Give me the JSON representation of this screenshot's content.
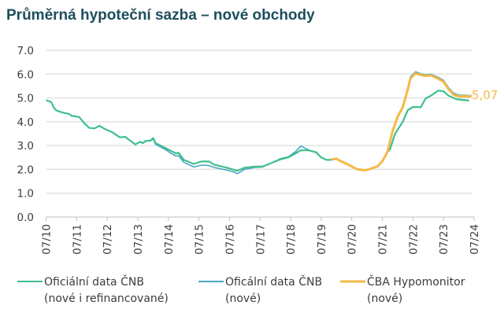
{
  "chart_data": {
    "type": "line",
    "title": "Průměrná hypoteční sazba – nové obchody",
    "xlabel": "",
    "ylabel": "",
    "ylim": [
      0,
      7
    ],
    "yticks": [
      "0.0",
      "1.0",
      "2.0",
      "3.0",
      "4.0",
      "5.0",
      "6.0",
      "7.0"
    ],
    "xticks": [
      "07/10",
      "07/11",
      "07/12",
      "07/13",
      "07/14",
      "07/15",
      "07/16",
      "07/17",
      "07/18",
      "07/19",
      "07/20",
      "07/21",
      "07/22",
      "07/23",
      "07/24"
    ],
    "grid": "horizontal",
    "legend_position": "bottom",
    "end_label": "5,07",
    "series": [
      {
        "name": "Oficiální data ČNB (nové i refinancované)",
        "legend_lines": [
          "Oficiální data ČNB",
          "(nové i refinancované)"
        ],
        "color": "#3fbf8c",
        "points": [
          [
            "2010-07",
            4.9
          ],
          [
            "2010-09",
            4.83
          ],
          [
            "2010-10",
            4.6
          ],
          [
            "2010-11",
            4.48
          ],
          [
            "2011-01",
            4.4
          ],
          [
            "2011-04",
            4.33
          ],
          [
            "2011-05",
            4.25
          ],
          [
            "2011-08",
            4.2
          ],
          [
            "2011-10",
            3.94
          ],
          [
            "2011-12",
            3.74
          ],
          [
            "2012-02",
            3.72
          ],
          [
            "2012-04",
            3.83
          ],
          [
            "2012-06",
            3.7
          ],
          [
            "2012-09",
            3.56
          ],
          [
            "2012-12",
            3.34
          ],
          [
            "2013-02",
            3.37
          ],
          [
            "2013-03",
            3.29
          ],
          [
            "2013-06",
            3.05
          ],
          [
            "2013-08",
            3.16
          ],
          [
            "2013-09",
            3.1
          ],
          [
            "2013-10",
            3.19
          ],
          [
            "2013-12",
            3.21
          ],
          [
            "2014-01",
            3.32
          ],
          [
            "2014-02",
            3.1
          ],
          [
            "2014-06",
            2.89
          ],
          [
            "2014-08",
            2.78
          ],
          [
            "2014-10",
            2.67
          ],
          [
            "2014-11",
            2.7
          ],
          [
            "2015-01",
            2.4
          ],
          [
            "2015-05",
            2.23
          ],
          [
            "2015-08",
            2.33
          ],
          [
            "2015-11",
            2.33
          ],
          [
            "2016-01",
            2.2
          ],
          [
            "2016-06",
            2.07
          ],
          [
            "2016-09",
            1.97
          ],
          [
            "2016-10",
            1.94
          ],
          [
            "2017-01",
            2.07
          ],
          [
            "2017-05",
            2.12
          ],
          [
            "2017-08",
            2.12
          ],
          [
            "2017-11",
            2.25
          ],
          [
            "2018-03",
            2.42
          ],
          [
            "2018-06",
            2.5
          ],
          [
            "2018-09",
            2.67
          ],
          [
            "2018-11",
            2.8
          ],
          [
            "2019-02",
            2.8
          ],
          [
            "2019-05",
            2.72
          ],
          [
            "2019-07",
            2.5
          ],
          [
            "2019-09",
            2.4
          ],
          [
            "2019-11",
            2.4
          ],
          [
            "2020-01",
            2.45
          ],
          [
            "2020-02",
            2.38
          ],
          [
            "2020-06",
            2.18
          ],
          [
            "2020-09",
            2.01
          ],
          [
            "2020-12",
            1.96
          ],
          [
            "2021-01",
            1.98
          ],
          [
            "2021-05",
            2.12
          ],
          [
            "2021-07",
            2.34
          ],
          [
            "2021-09",
            2.73
          ],
          [
            "2021-10",
            2.84
          ],
          [
            "2021-12",
            3.5
          ],
          [
            "2022-03",
            4.0
          ],
          [
            "2022-05",
            4.49
          ],
          [
            "2022-07",
            4.62
          ],
          [
            "2022-09",
            4.62
          ],
          [
            "2022-10",
            4.6
          ],
          [
            "2022-12",
            4.98
          ],
          [
            "2023-02",
            5.09
          ],
          [
            "2023-05",
            5.31
          ],
          [
            "2023-07",
            5.28
          ],
          [
            "2023-09",
            5.09
          ],
          [
            "2023-12",
            4.95
          ],
          [
            "2024-05",
            4.89
          ]
        ]
      },
      {
        "name": "Oficální data ČNB (nové)",
        "legend_lines": [
          "Oficální data ČNB",
          "(nové)"
        ],
        "color": "#4aa6c6",
        "points": [
          [
            "2013-12",
            3.2
          ],
          [
            "2014-01",
            3.28
          ],
          [
            "2014-02",
            3.05
          ],
          [
            "2014-06",
            2.82
          ],
          [
            "2014-08",
            2.68
          ],
          [
            "2014-10",
            2.56
          ],
          [
            "2014-11",
            2.58
          ],
          [
            "2015-01",
            2.3
          ],
          [
            "2015-05",
            2.1
          ],
          [
            "2015-08",
            2.18
          ],
          [
            "2015-11",
            2.16
          ],
          [
            "2016-01",
            2.08
          ],
          [
            "2016-06",
            1.97
          ],
          [
            "2016-09",
            1.88
          ],
          [
            "2016-10",
            1.82
          ],
          [
            "2017-01",
            2.0
          ],
          [
            "2017-05",
            2.08
          ],
          [
            "2017-08",
            2.1
          ],
          [
            "2017-11",
            2.25
          ],
          [
            "2018-03",
            2.45
          ],
          [
            "2018-06",
            2.52
          ],
          [
            "2018-09",
            2.75
          ],
          [
            "2018-11",
            2.98
          ],
          [
            "2019-02",
            2.82
          ],
          [
            "2019-05",
            2.7
          ],
          [
            "2019-07",
            2.5
          ],
          [
            "2019-09",
            2.4
          ],
          [
            "2019-11",
            2.4
          ],
          [
            "2020-01",
            2.44
          ],
          [
            "2020-02",
            2.38
          ],
          [
            "2020-06",
            2.17
          ],
          [
            "2020-09",
            2.0
          ],
          [
            "2020-12",
            1.95
          ],
          [
            "2021-01",
            1.97
          ],
          [
            "2021-05",
            2.12
          ],
          [
            "2021-07",
            2.35
          ],
          [
            "2021-09",
            2.75
          ],
          [
            "2021-11",
            3.62
          ],
          [
            "2022-01",
            4.25
          ],
          [
            "2022-03",
            4.65
          ],
          [
            "2022-05",
            5.45
          ],
          [
            "2022-06",
            5.88
          ],
          [
            "2022-08",
            6.1
          ],
          [
            "2022-10",
            6.02
          ],
          [
            "2022-12",
            5.97
          ],
          [
            "2023-02",
            6.0
          ],
          [
            "2023-05",
            5.86
          ],
          [
            "2023-07",
            5.74
          ],
          [
            "2023-09",
            5.43
          ],
          [
            "2023-11",
            5.2
          ],
          [
            "2024-01",
            5.12
          ],
          [
            "2024-06",
            5.1
          ]
        ]
      },
      {
        "name": "ČBA Hypomonitor (nové)",
        "legend_lines": [
          "ČBA Hypomonitor",
          "(nové)"
        ],
        "color": "#f5b946",
        "points": [
          [
            "2019-11",
            2.42
          ],
          [
            "2020-01",
            2.45
          ],
          [
            "2020-02",
            2.38
          ],
          [
            "2020-06",
            2.18
          ],
          [
            "2020-09",
            2.01
          ],
          [
            "2020-12",
            1.96
          ],
          [
            "2021-01",
            1.98
          ],
          [
            "2021-05",
            2.12
          ],
          [
            "2021-07",
            2.34
          ],
          [
            "2021-09",
            2.73
          ],
          [
            "2021-11",
            3.61
          ],
          [
            "2022-01",
            4.21
          ],
          [
            "2022-03",
            4.6
          ],
          [
            "2022-05",
            5.37
          ],
          [
            "2022-06",
            5.81
          ],
          [
            "2022-08",
            6.03
          ],
          [
            "2022-10",
            5.97
          ],
          [
            "2022-12",
            5.92
          ],
          [
            "2023-02",
            5.95
          ],
          [
            "2023-05",
            5.8
          ],
          [
            "2023-07",
            5.68
          ],
          [
            "2023-09",
            5.37
          ],
          [
            "2023-11",
            5.13
          ],
          [
            "2024-01",
            5.07
          ],
          [
            "2024-06",
            5.07
          ]
        ]
      }
    ]
  }
}
